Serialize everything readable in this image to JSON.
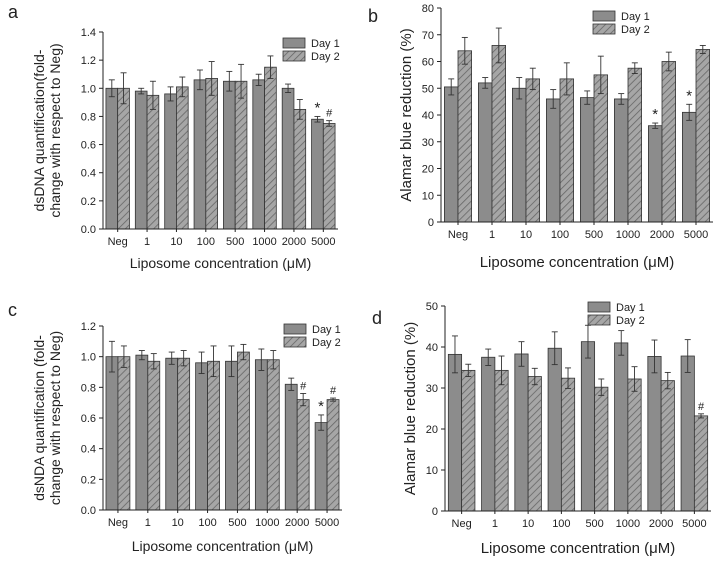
{
  "colors": {
    "day1": "#8c8c8c",
    "day2": "#a6a6a6",
    "hatch": "#666666",
    "axis": "#222222"
  },
  "chart_data": [
    {
      "id": "a",
      "panel_label": "a",
      "type": "bar",
      "xlabel": "Liposome concentration (μM)",
      "ylabel_lines": [
        "dsDNA quantification(fold-",
        "change with respect to Neg)"
      ],
      "categories": [
        "Neg",
        "1",
        "10",
        "100",
        "500",
        "1000",
        "2000",
        "5000"
      ],
      "ylim": [
        0,
        1.4
      ],
      "yticks": [
        0.0,
        0.2,
        0.4,
        0.6,
        0.8,
        1.0,
        1.2,
        1.4
      ],
      "ytick_labels": [
        "0.0",
        "0.2",
        "0.4",
        "0.6",
        "0.8",
        "1.0",
        "1.2",
        "1.4"
      ],
      "legend": [
        "Day 1",
        "Day 2"
      ],
      "series": [
        {
          "name": "Day 1",
          "values": [
            1.0,
            0.98,
            0.96,
            1.06,
            1.05,
            1.06,
            1.0,
            0.78
          ],
          "errors": [
            0.06,
            0.02,
            0.05,
            0.07,
            0.07,
            0.04,
            0.03,
            0.02
          ]
        },
        {
          "name": "Day 2",
          "values": [
            1.0,
            0.95,
            1.01,
            1.07,
            1.05,
            1.15,
            0.85,
            0.75
          ],
          "errors": [
            0.11,
            0.1,
            0.07,
            0.12,
            0.12,
            0.08,
            0.07,
            0.02
          ]
        }
      ],
      "annotations": [
        {
          "category": "5000",
          "series": 0,
          "text": "*"
        },
        {
          "category": "5000",
          "series": 1,
          "text": "#"
        }
      ]
    },
    {
      "id": "b",
      "panel_label": "b",
      "type": "bar",
      "xlabel": "Liposome concentration (μM)",
      "ylabel_lines": [
        "Alamar blue reduction (%)"
      ],
      "categories": [
        "Neg",
        "1",
        "10",
        "100",
        "500",
        "1000",
        "2000",
        "5000"
      ],
      "ylim": [
        0,
        80
      ],
      "yticks": [
        0,
        10,
        20,
        30,
        40,
        50,
        60,
        70,
        80
      ],
      "ytick_labels": [
        "0",
        "10",
        "20",
        "30",
        "40",
        "50",
        "60",
        "70",
        "80"
      ],
      "legend": [
        "Day 1",
        "Day 2"
      ],
      "series": [
        {
          "name": "Day 1",
          "values": [
            50.5,
            52,
            50,
            46,
            46.5,
            46,
            36,
            41
          ],
          "errors": [
            3,
            2,
            4,
            3.5,
            2.5,
            2,
            1,
            3
          ]
        },
        {
          "name": "Day 2",
          "values": [
            64,
            66,
            53.5,
            53.5,
            55,
            57.5,
            60,
            64.5
          ],
          "errors": [
            5,
            6.5,
            4,
            6,
            7,
            2,
            3.5,
            1.5
          ]
        }
      ],
      "annotations": [
        {
          "category": "2000",
          "series": 0,
          "text": "*"
        },
        {
          "category": "5000",
          "series": 0,
          "text": "*"
        }
      ]
    },
    {
      "id": "c",
      "panel_label": "c",
      "type": "bar",
      "xlabel": "Liposome concentration (μM)",
      "ylabel_lines": [
        "dsNDA quantification (fold-",
        "change with respect to Neg)"
      ],
      "categories": [
        "Neg",
        "1",
        "10",
        "100",
        "500",
        "1000",
        "2000",
        "5000"
      ],
      "ylim": [
        0,
        1.2
      ],
      "yticks": [
        0.0,
        0.2,
        0.4,
        0.6,
        0.8,
        1.0,
        1.2
      ],
      "ytick_labels": [
        "0.0",
        "0.2",
        "0.4",
        "0.6",
        "0.8",
        "1.0",
        "1.2"
      ],
      "legend": [
        "Day 1",
        "Day 2"
      ],
      "series": [
        {
          "name": "Day 1",
          "values": [
            1.0,
            1.01,
            0.99,
            0.96,
            0.97,
            0.98,
            0.82,
            0.57
          ],
          "errors": [
            0.1,
            0.03,
            0.04,
            0.07,
            0.1,
            0.07,
            0.04,
            0.05
          ]
        },
        {
          "name": "Day 2",
          "values": [
            1.0,
            0.97,
            0.99,
            0.97,
            1.03,
            0.98,
            0.72,
            0.72
          ],
          "errors": [
            0.07,
            0.05,
            0.05,
            0.1,
            0.05,
            0.06,
            0.04,
            0.01
          ]
        }
      ],
      "annotations": [
        {
          "category": "2000",
          "series": 1,
          "text": "#"
        },
        {
          "category": "5000",
          "series": 0,
          "text": "*"
        },
        {
          "category": "5000",
          "series": 1,
          "text": "#"
        }
      ]
    },
    {
      "id": "d",
      "panel_label": "d",
      "type": "bar",
      "xlabel": "Liposome concentration (μM)",
      "ylabel_lines": [
        "Alamar blue reduction (%)"
      ],
      "categories": [
        "Neg",
        "1",
        "10",
        "100",
        "500",
        "1000",
        "2000",
        "5000"
      ],
      "ylim": [
        0,
        50
      ],
      "yticks": [
        0,
        10,
        20,
        30,
        40,
        50
      ],
      "ytick_labels": [
        "0",
        "10",
        "20",
        "30",
        "40",
        "50"
      ],
      "legend": [
        "Day 1",
        "Day 2"
      ],
      "series": [
        {
          "name": "Day 1",
          "values": [
            38.2,
            37.5,
            38.3,
            39.7,
            41.3,
            41,
            37.7,
            37.8
          ],
          "errors": [
            4.5,
            2,
            3,
            4,
            4,
            3,
            4,
            4
          ]
        },
        {
          "name": "Day 2",
          "values": [
            34.3,
            34.3,
            32.8,
            32.4,
            30.2,
            32.2,
            31.8,
            23.2
          ],
          "errors": [
            1.5,
            3.5,
            2,
            2.5,
            2,
            3,
            2,
            0.5
          ]
        }
      ],
      "annotations": [
        {
          "category": "5000",
          "series": 1,
          "text": "#"
        }
      ]
    }
  ]
}
